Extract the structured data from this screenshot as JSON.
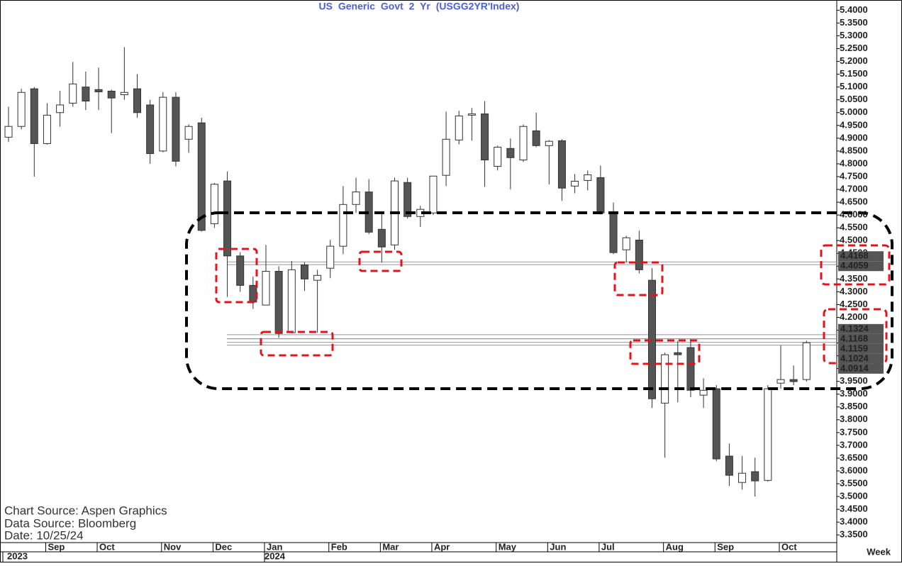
{
  "chart_data": {
    "type": "candlestick",
    "title": "US Generic Govt 2 Yr (USGG2YR'Index)",
    "notes": [
      "Chart Source: Aspen Graphics",
      "Data Source: Bloomberg",
      "Date: 10/25/24"
    ],
    "period": "Week",
    "categories": [
      null,
      null,
      null,
      "Sep",
      null,
      null,
      null,
      "Oct",
      null,
      null,
      null,
      null,
      "Nov",
      null,
      null,
      null,
      "Dec",
      null,
      null,
      null,
      "Jan",
      null,
      null,
      null,
      null,
      "Feb",
      null,
      null,
      null,
      "Mar",
      null,
      null,
      null,
      "Apr",
      null,
      null,
      null,
      null,
      "May",
      null,
      null,
      null,
      "Jun",
      null,
      null,
      null,
      "Jul",
      null,
      null,
      null,
      null,
      "Aug",
      null,
      null,
      null,
      "Sep",
      null,
      null,
      null,
      null,
      "Oct",
      null,
      null
    ],
    "years": [
      "2023",
      null,
      null,
      null,
      null,
      null,
      null,
      null,
      null,
      null,
      null,
      null,
      null,
      null,
      null,
      null,
      null,
      null,
      null,
      null,
      "2024",
      null,
      null,
      null,
      null,
      null,
      null,
      null,
      null,
      null,
      null,
      null,
      null,
      null,
      null,
      null,
      null,
      null,
      null,
      null,
      null,
      null,
      null,
      null,
      null,
      null,
      null,
      null,
      null,
      null,
      null,
      null,
      null,
      null,
      null,
      null,
      null,
      null,
      null,
      null,
      null,
      null,
      null
    ],
    "open": [
      4.904,
      4.946,
      5.093,
      4.879,
      5.0,
      5.037,
      5.1,
      5.09,
      5.084,
      5.07,
      5.093,
      5.03,
      4.85,
      5.06,
      4.896,
      4.96,
      4.566,
      4.733,
      4.44,
      4.325,
      4.248,
      4.38,
      4.14,
      4.405,
      4.345,
      4.392,
      4.478,
      4.641,
      4.69,
      4.544,
      4.483,
      4.727,
      4.594,
      4.608,
      4.755,
      4.893,
      4.99,
      4.995,
      4.79,
      4.86,
      4.815,
      4.929,
      4.871,
      4.89,
      4.713,
      4.735,
      4.746,
      4.613,
      4.464,
      4.502,
      4.345,
      3.865,
      4.062,
      4.082,
      3.896,
      3.921,
      3.658,
      3.555,
      3.597,
      3.563,
      3.943,
      3.957,
      3.957
    ],
    "high": [
      5.023,
      5.093,
      5.1,
      5.037,
      5.085,
      5.198,
      5.16,
      5.176,
      5.09,
      5.256,
      5.15,
      5.05,
      5.08,
      5.08,
      4.954,
      4.98,
      4.725,
      4.77,
      4.455,
      4.36,
      4.483,
      4.4,
      4.42,
      4.415,
      4.386,
      4.503,
      4.713,
      4.746,
      4.74,
      4.608,
      4.746,
      4.746,
      4.636,
      4.752,
      5.004,
      5.007,
      5.018,
      5.045,
      4.871,
      4.899,
      4.954,
      5.0,
      4.893,
      4.896,
      4.76,
      4.774,
      4.793,
      4.649,
      4.519,
      4.539,
      4.392,
      4.062,
      4.109,
      4.115,
      3.962,
      3.935,
      3.707,
      3.658,
      3.652,
      3.935,
      4.09,
      4.012,
      4.109
    ],
    "low": [
      4.885,
      4.935,
      4.75,
      4.875,
      4.945,
      5.023,
      5.01,
      5.01,
      4.92,
      5.05,
      4.98,
      4.8,
      4.845,
      4.79,
      4.843,
      4.535,
      4.55,
      4.28,
      4.3,
      4.233,
      4.248,
      4.12,
      4.137,
      4.303,
      4.14,
      4.353,
      4.447,
      4.608,
      4.525,
      4.414,
      4.464,
      4.586,
      4.553,
      4.6,
      4.713,
      4.876,
      4.89,
      4.71,
      4.774,
      4.7,
      4.807,
      4.865,
      4.719,
      4.655,
      4.685,
      4.696,
      4.602,
      4.447,
      4.414,
      4.372,
      3.846,
      3.652,
      3.868,
      3.888,
      3.846,
      3.638,
      3.541,
      3.527,
      3.5,
      3.558,
      3.921,
      3.935,
      3.949
    ],
    "close": [
      4.946,
      5.079,
      4.879,
      4.99,
      5.03,
      5.112,
      5.045,
      5.081,
      5.057,
      5.079,
      5.0,
      4.84,
      5.06,
      4.81,
      4.946,
      4.54,
      4.72,
      4.44,
      4.325,
      4.26,
      4.38,
      4.137,
      4.386,
      4.35,
      4.364,
      4.478,
      4.641,
      4.69,
      4.533,
      4.475,
      4.733,
      4.594,
      4.622,
      4.752,
      4.896,
      4.987,
      4.995,
      4.815,
      4.865,
      4.824,
      4.946,
      4.871,
      4.888,
      4.705,
      4.732,
      4.757,
      4.608,
      4.453,
      4.511,
      4.386,
      3.882,
      4.054,
      4.054,
      3.915,
      3.915,
      3.647,
      3.583,
      3.591,
      3.561,
      3.921,
      3.957,
      3.949,
      4.101
    ],
    "up_color": "#ffffff",
    "down_color": "#555555",
    "levels": [
      4.4168,
      4.4059,
      4.1324,
      4.1168,
      4.1159,
      4.1024,
      4.0914
    ],
    "ylim": [
      3.32,
      5.44
    ],
    "yticks": [
      {
        "value": 5.4,
        "label": "5.4000"
      },
      {
        "value": 5.35,
        "label": "5.3500"
      },
      {
        "value": 5.3,
        "label": "5.3000"
      },
      {
        "value": 5.25,
        "label": "5.2500"
      },
      {
        "value": 5.2,
        "label": "5.2000"
      },
      {
        "value": 5.15,
        "label": "5.1500"
      },
      {
        "value": 5.1,
        "label": "5.1000"
      },
      {
        "value": 5.05,
        "label": "5.0500"
      },
      {
        "value": 5.0,
        "label": "5.0000"
      },
      {
        "value": 4.95,
        "label": "4.9500"
      },
      {
        "value": 4.9,
        "label": "4.9000"
      },
      {
        "value": 4.85,
        "label": "4.8500"
      },
      {
        "value": 4.8,
        "label": "4.8000"
      },
      {
        "value": 4.75,
        "label": "4.7500"
      },
      {
        "value": 4.7,
        "label": "4.7000"
      },
      {
        "value": 4.65,
        "label": "4.6500"
      },
      {
        "value": 4.6,
        "label": "4.6000"
      },
      {
        "value": 4.55,
        "label": "4.5500"
      },
      {
        "value": 4.5,
        "label": "4.5000"
      },
      {
        "value": 4.45,
        "label": "4.4500"
      },
      {
        "value": 4.4,
        "label": "4.4000"
      },
      {
        "value": 4.35,
        "label": "4.3500"
      },
      {
        "value": 4.3,
        "label": "4.3000"
      },
      {
        "value": 4.25,
        "label": "4.2500"
      },
      {
        "value": 4.2,
        "label": "4.2000"
      },
      {
        "value": 4.15,
        "label": "4.1500"
      },
      {
        "value": 4.1,
        "label": "4.1000"
      },
      {
        "value": 4.05,
        "label": "4.0500"
      },
      {
        "value": 4.0,
        "label": "4.0000"
      },
      {
        "value": 3.95,
        "label": "3.9500"
      },
      {
        "value": 3.9,
        "label": "3.9000"
      },
      {
        "value": 3.85,
        "label": "3.8500"
      },
      {
        "value": 3.8,
        "label": "3.8000"
      },
      {
        "value": 3.75,
        "label": "3.7500"
      },
      {
        "value": 3.7,
        "label": "3.7000"
      },
      {
        "value": 3.65,
        "label": "3.6500"
      },
      {
        "value": 3.6,
        "label": "3.6000"
      },
      {
        "value": 3.55,
        "label": "3.5500"
      },
      {
        "value": 3.5,
        "label": "3.5000"
      },
      {
        "value": 3.45,
        "label": "3.4500"
      },
      {
        "value": 3.4,
        "label": "3.4000"
      },
      {
        "value": 3.35,
        "label": "3.3500"
      }
    ]
  }
}
